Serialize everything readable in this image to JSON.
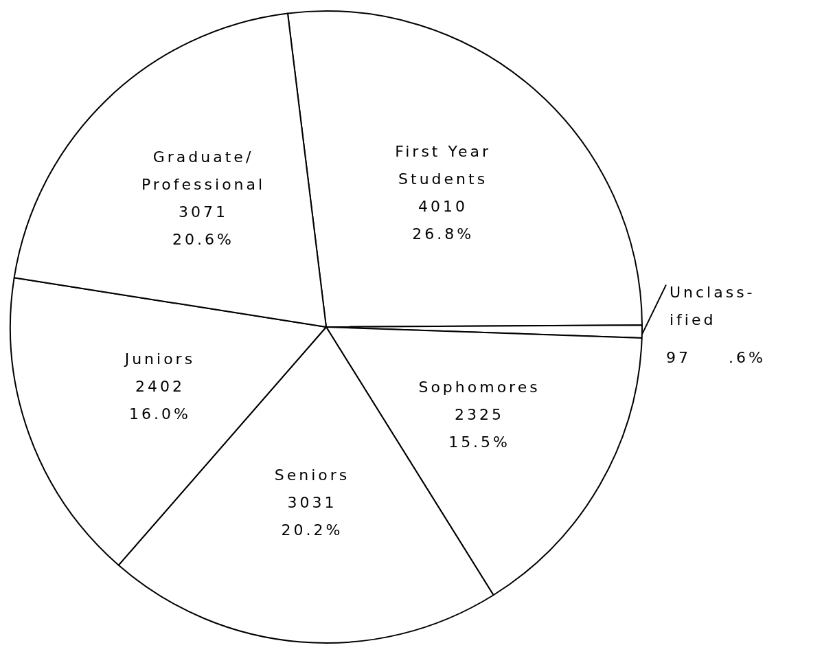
{
  "chart_data": {
    "type": "pie",
    "categories": [
      "First Year\nStudents",
      "Unclass-\nified",
      "Sophomores",
      "Seniors",
      "Juniors",
      "Graduate/\nProfessional"
    ],
    "values": [
      4010,
      97,
      2325,
      3031,
      2402,
      3071
    ],
    "colors": [
      "#ffffff",
      "#ffffff",
      "#ffffff",
      "#ffffff",
      "#ffffff",
      "#ffffff"
    ],
    "value_labels": [
      "4010\n26.8%",
      "97     .6%",
      "2325\n15.5%",
      "3031\n20.2%",
      "2402\n16.0%",
      "3071\n20.6%"
    ],
    "legend": false
  }
}
